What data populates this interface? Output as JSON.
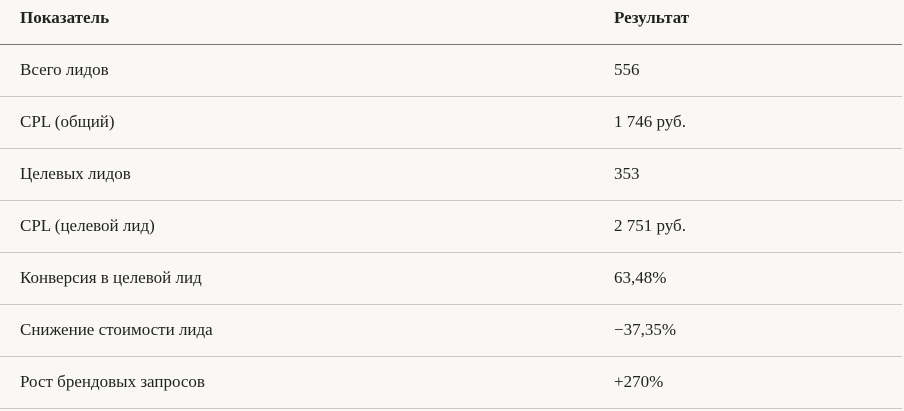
{
  "table": {
    "headers": [
      "Показатель",
      "Результат"
    ],
    "rows": [
      [
        "Всего лидов",
        "556"
      ],
      [
        "CPL (общий)",
        "1 746 руб."
      ],
      [
        "Целевых лидов",
        "353"
      ],
      [
        "CPL (целевой лид)",
        "2 751 руб."
      ],
      [
        "Конверсия в целевой лид",
        "63,48%"
      ],
      [
        "Снижение стоимости лида",
        "−37,35%"
      ],
      [
        "Рост брендовых запросов",
        "+270%"
      ]
    ]
  }
}
